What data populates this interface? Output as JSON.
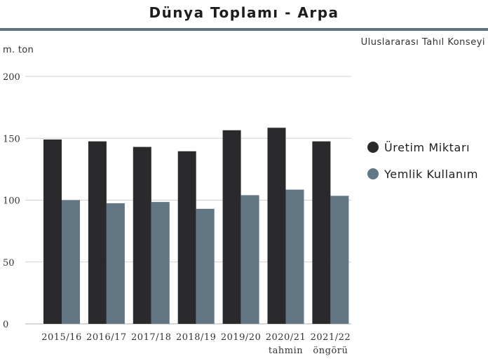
{
  "header": {
    "title": "Dünya Toplamı - Arpa",
    "source": "Uluslararası Tahıl Konseyi",
    "unit": "m. ton"
  },
  "colors": {
    "production": "#2a2a2d",
    "feed": "#627684",
    "grid": "#cfcfcf",
    "rule": "#5f7381"
  },
  "chart_data": {
    "type": "bar",
    "title": "Dünya Toplamı - Arpa",
    "ylabel": "m. ton",
    "xlabel": "",
    "ylim": [
      0,
      200
    ],
    "yticks": [
      0,
      50,
      100,
      150,
      200
    ],
    "grid": true,
    "legend_position": "right",
    "categories": [
      [
        "2015/16"
      ],
      [
        "2016/17"
      ],
      [
        "2017/18"
      ],
      [
        "2018/19"
      ],
      [
        "2019/20"
      ],
      [
        "2020/21",
        "tahmin"
      ],
      [
        "2021/22",
        "öngörü"
      ]
    ],
    "series": [
      {
        "name": "Üretim Miktarı",
        "color": "#2a2a2d",
        "values": [
          149,
          147.5,
          143,
          139.5,
          156.5,
          158.5,
          147.5
        ]
      },
      {
        "name": "Yemlik Kullanım",
        "color": "#627684",
        "values": [
          100,
          97.5,
          98.5,
          93,
          104,
          108.5,
          103.5
        ]
      }
    ]
  }
}
